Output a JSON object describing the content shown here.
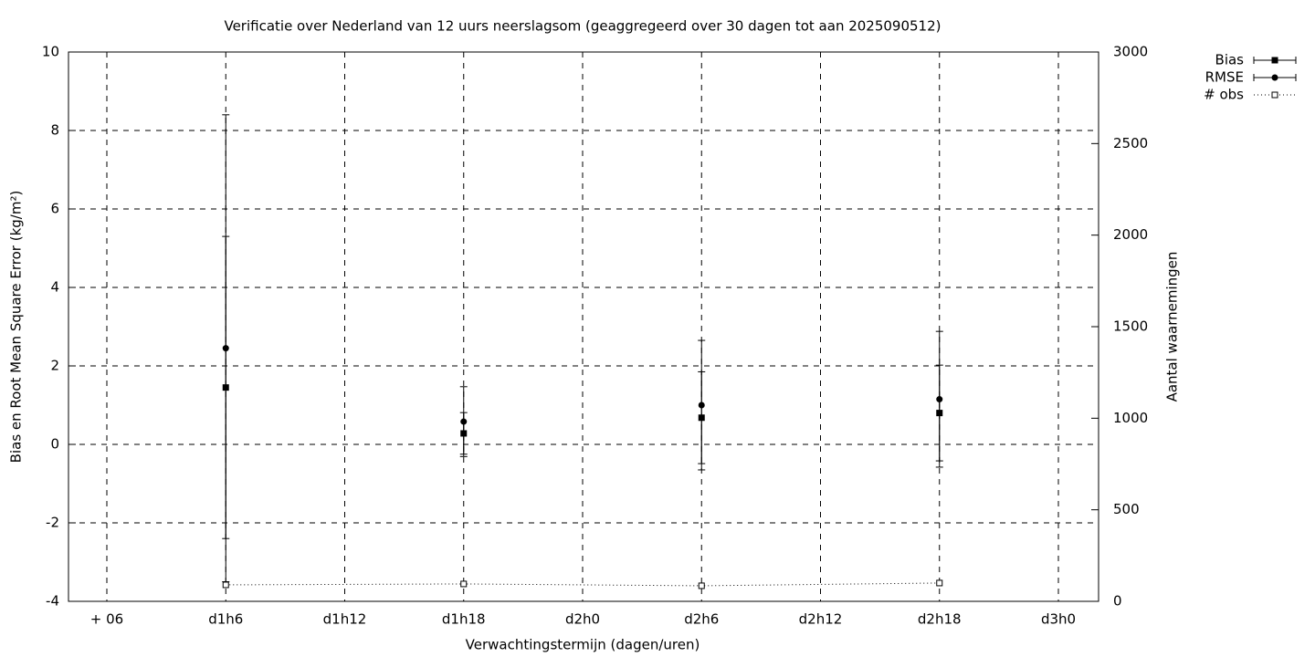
{
  "chart_data": {
    "type": "errorbar",
    "title": "Verificatie over Nederland van 12 uurs neerslagsom (geaggregeerd over 30 dagen tot aan 2025090512)",
    "x_label": "Verwachtingstermijn (dagen/uren)",
    "y_label": "Bias en Root Mean Square Error (kg/m²)",
    "y2_label": "Aantal waarnemingen",
    "categories": [
      "+ 06",
      "d1h6",
      "d1h12",
      "d1h18",
      "d2h0",
      "d2h6",
      "d2h12",
      "d2h18",
      "d3h0"
    ],
    "ylim": [
      -4,
      10
    ],
    "yticks": [
      -4,
      -2,
      0,
      2,
      4,
      6,
      8,
      10
    ],
    "y2lim": [
      0,
      3000
    ],
    "y2ticks": [
      0,
      500,
      1000,
      1500,
      2000,
      2500,
      3000
    ],
    "grid": true,
    "legend": "top-right",
    "series": [
      {
        "name": "Bias",
        "color": "#000000",
        "marker": "filled-square",
        "values": [
          null,
          1.45,
          null,
          0.28,
          null,
          0.68,
          null,
          0.8,
          null
        ],
        "errors": [
          null,
          3.85,
          null,
          0.53,
          null,
          1.17,
          null,
          1.22,
          null
        ]
      },
      {
        "name": "RMSE",
        "color": "#000000",
        "marker": "filled-circle",
        "values": [
          null,
          2.45,
          null,
          0.58,
          null,
          1.0,
          null,
          1.15,
          null
        ],
        "errors": [
          null,
          5.95,
          null,
          0.89,
          null,
          1.65,
          null,
          1.73,
          null
        ]
      },
      {
        "name": "# obs",
        "color": "#000000",
        "marker": "open-square",
        "axis": "y2",
        "values": [
          null,
          90,
          null,
          95,
          null,
          85,
          null,
          100,
          null
        ]
      }
    ]
  }
}
